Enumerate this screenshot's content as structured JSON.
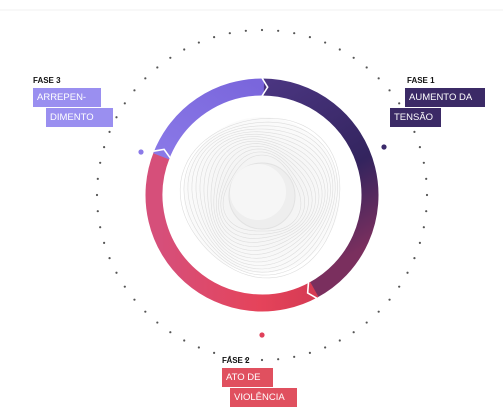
{
  "phases": [
    {
      "label": "FASE 1",
      "lines": [
        "AUMENTO DA",
        "TENSÃO"
      ]
    },
    {
      "label": "FASE 2",
      "lines": [
        "ATO DE",
        "VIOLÊNCIA"
      ]
    },
    {
      "label": "FASE 3",
      "lines": [
        "ARREPEN-",
        "DIMENTO"
      ]
    }
  ]
}
